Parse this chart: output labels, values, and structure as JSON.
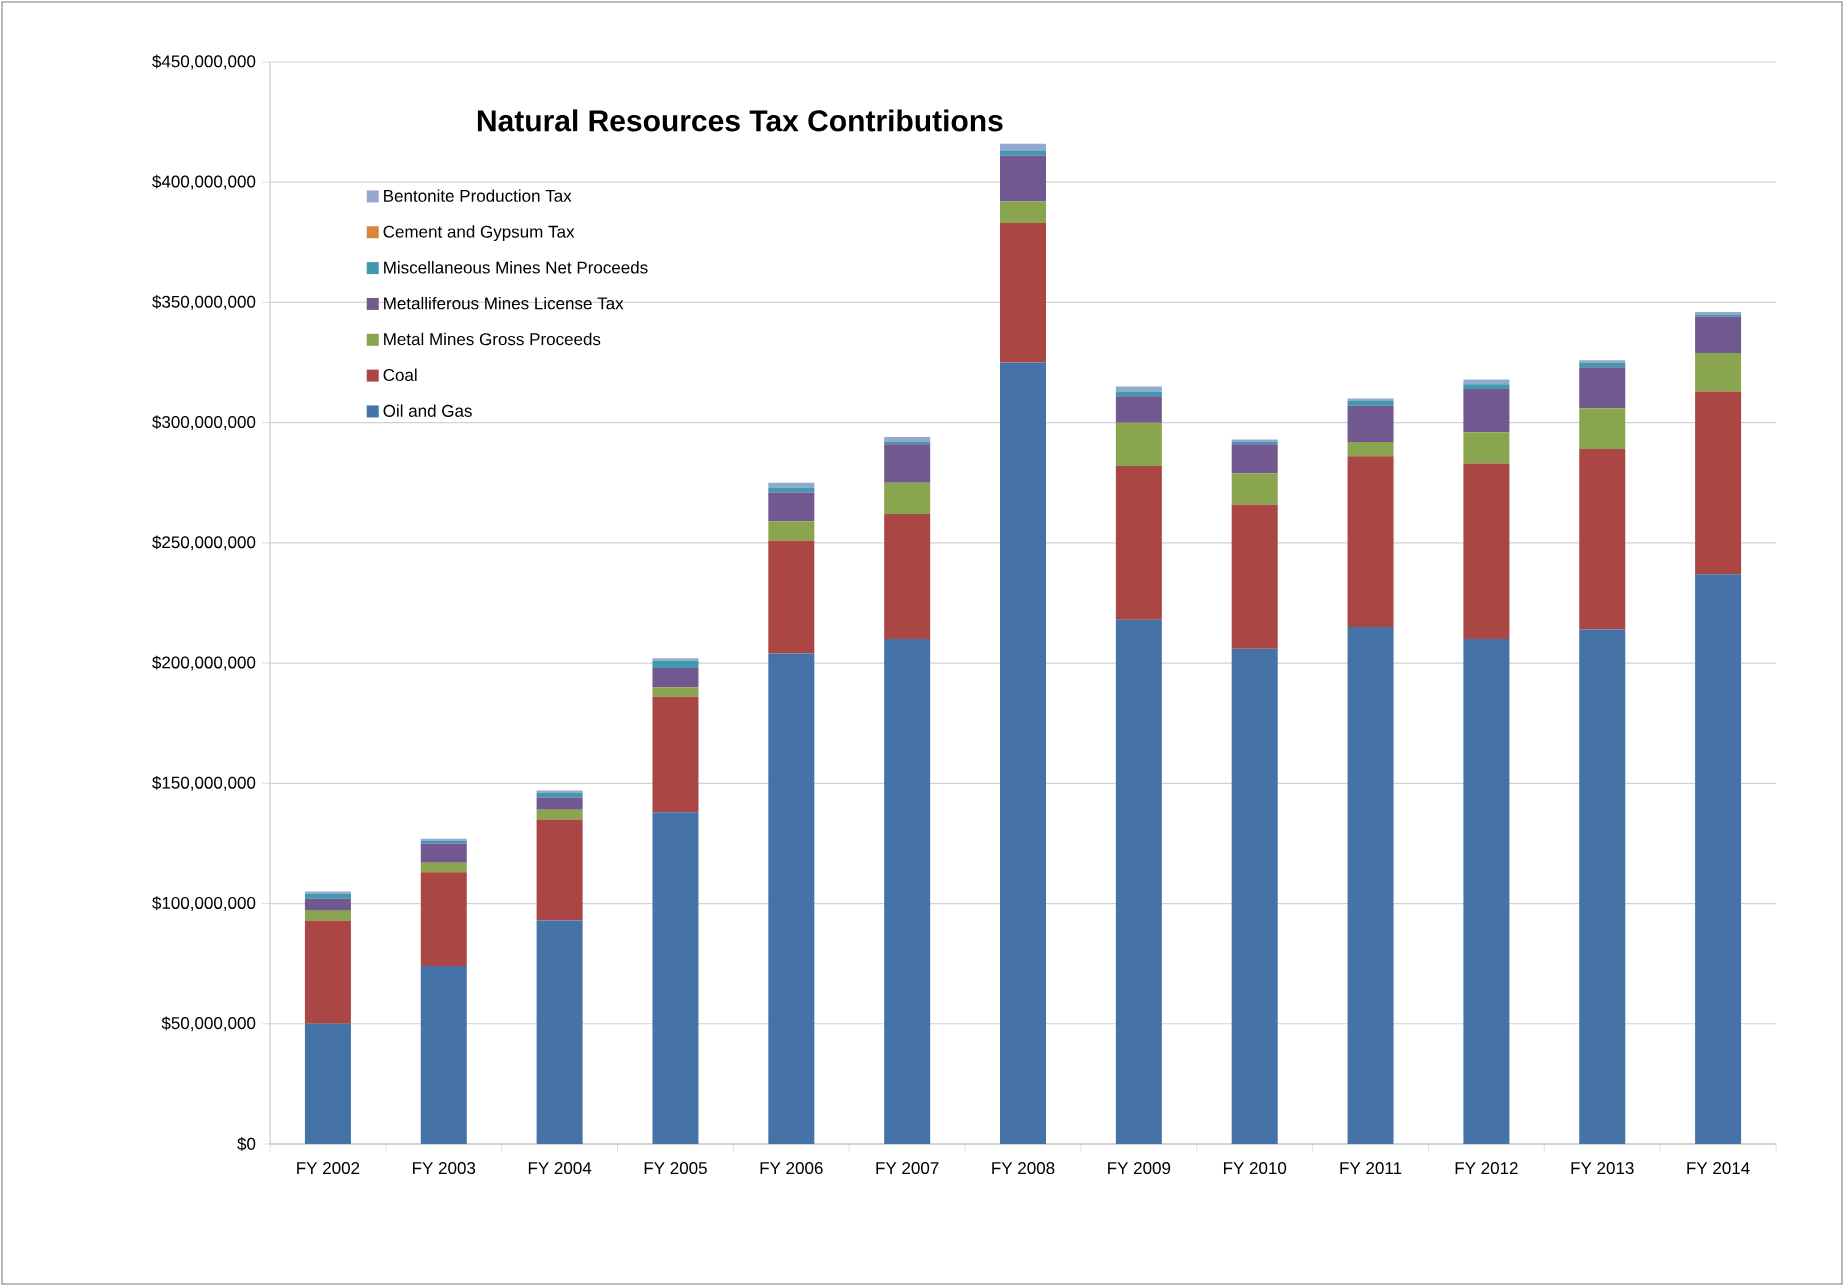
{
  "chart_data": {
    "type": "bar",
    "stacked": true,
    "title": "Natural Resources Tax Contributions",
    "categories": [
      "FY 2002",
      "FY 2003",
      "FY 2004",
      "FY 2005",
      "FY 2006",
      "FY 2007",
      "FY 2008",
      "FY 2009",
      "FY 2010",
      "FY 2011",
      "FY 2012",
      "FY 2013",
      "FY 2014"
    ],
    "series": [
      {
        "name": "Oil and Gas",
        "color": "#4572a7",
        "values": [
          50000000,
          74000000,
          93000000,
          138000000,
          204000000,
          210000000,
          325000000,
          218000000,
          206000000,
          215000000,
          210000000,
          214000000,
          237000000
        ]
      },
      {
        "name": "Coal",
        "color": "#aa4643",
        "values": [
          43000000,
          39000000,
          42000000,
          48000000,
          47000000,
          52000000,
          58000000,
          64000000,
          60000000,
          71000000,
          73000000,
          75000000,
          76000000
        ]
      },
      {
        "name": "Metal Mines Gross Proceeds",
        "color": "#89a54e",
        "values": [
          4000000,
          4000000,
          4000000,
          4000000,
          8000000,
          13000000,
          9000000,
          18000000,
          13000000,
          6000000,
          13000000,
          17000000,
          16000000
        ]
      },
      {
        "name": "Metalliferous Mines License Tax",
        "color": "#71588f",
        "values": [
          5000000,
          8000000,
          5000000,
          8000000,
          12000000,
          16000000,
          19000000,
          11000000,
          12000000,
          15000000,
          18000000,
          17000000,
          15000000
        ]
      },
      {
        "name": "Miscellaneous Mines Net Proceeds",
        "color": "#4198af",
        "values": [
          2000000,
          1000000,
          2000000,
          3000000,
          2000000,
          1000000,
          2000000,
          2000000,
          1000000,
          2000000,
          2000000,
          2000000,
          1000000
        ]
      },
      {
        "name": "Cement and Gypsum Tax",
        "color": "#db843d",
        "values": [
          null,
          null,
          null,
          null,
          null,
          null,
          null,
          null,
          null,
          null,
          null,
          null,
          null
        ]
      },
      {
        "name": "Bentonite Production Tax",
        "color": "#93a9cf",
        "values": [
          1000000,
          1000000,
          1000000,
          1000000,
          2000000,
          2000000,
          3000000,
          2000000,
          1000000,
          1000000,
          2000000,
          1000000,
          1000000
        ]
      }
    ],
    "ylim": [
      0,
      450000000
    ],
    "yticks": [
      {
        "value": 0,
        "label": "$0"
      },
      {
        "value": 50000000,
        "label": "$50,000,000"
      },
      {
        "value": 100000000,
        "label": "$100,000,000"
      },
      {
        "value": 150000000,
        "label": "$150,000,000"
      },
      {
        "value": 200000000,
        "label": "$200,000,000"
      },
      {
        "value": 250000000,
        "label": "$250,000,000"
      },
      {
        "value": 300000000,
        "label": "$300,000,000"
      },
      {
        "value": 350000000,
        "label": "$350,000,000"
      },
      {
        "value": 400000000,
        "label": "$400,000,000"
      },
      {
        "value": 450000000,
        "label": "$450,000,000"
      }
    ],
    "grid": "y",
    "legend": "top left"
  }
}
